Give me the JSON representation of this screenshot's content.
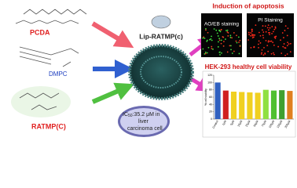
{
  "molecules": [
    "PCDA",
    "DMPC",
    "RATMP(C)"
  ],
  "product": "Lip-RATMP(c)",
  "ic50": {
    "prefix": "IC",
    "sub": "50",
    "lines": [
      ":35.2 μM in",
      "liver",
      "carcinoma cell"
    ]
  },
  "apoptosis": {
    "title": "Induction of apoptosis",
    "panels": [
      "AO/EB staining",
      "PI Staining"
    ]
  },
  "viability": {
    "title": "HEK-293 healthy cell viability",
    "y_label": "% cell viability",
    "categories": [
      "Control",
      "1µM",
      "5µM",
      "10µM",
      "25µM",
      "50µM",
      "75µM",
      "100µM",
      "150µM",
      "200µM"
    ],
    "values": [
      100,
      78,
      75,
      74,
      73,
      72,
      80,
      78,
      79,
      77
    ],
    "colors": [
      "#3060c0",
      "#d02020",
      "#f0d020",
      "#f0d020",
      "#f0d020",
      "#f0d020",
      "#90e040",
      "#50c030",
      "#40a030",
      "#e08020"
    ],
    "ylim": [
      0,
      120
    ],
    "yticks": [
      0,
      20,
      40,
      60,
      80,
      100,
      120
    ]
  }
}
